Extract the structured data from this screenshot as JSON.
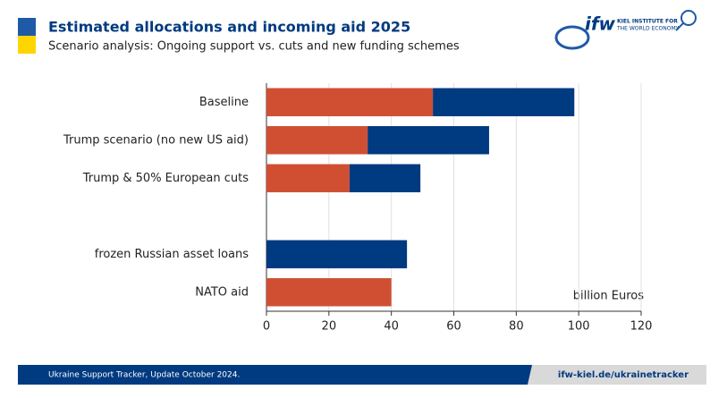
{
  "header": {
    "logo": "ifw",
    "logo_text": [
      "KIEL INSTITUTE FOR",
      "THE WORLD ECONOMY"
    ]
  },
  "chart_data": {
    "type": "stacked_bar_horizontal",
    "title": "Estimated allocations and incoming aid 2025",
    "subtitle": "Scenario analysis: Ongoing support vs. cuts and new funding schemes",
    "categories": [
      "Baseline",
      "Trump scenario (no new US aid)",
      "Trump & 50% European cuts",
      null,
      "frozen Russian asset loans",
      "NATO aid"
    ],
    "series": [
      {
        "color": "#d04f33",
        "values": [
          53.3,
          32.4,
          26.6,
          null,
          null,
          40
        ]
      },
      {
        "color": "#003a80",
        "values": [
          45.3,
          38.9,
          22.7,
          null,
          45,
          null
        ]
      }
    ],
    "xlim": [
      0,
      120
    ],
    "xticks": [
      0,
      20,
      40,
      60,
      80,
      100,
      120
    ],
    "grid": true,
    "unit_label": "billion Euros"
  },
  "footer": {
    "left": "Ukraine Support Tracker, Update October 2024.",
    "right": "ifw-kiel.de/ukrainetracker"
  }
}
